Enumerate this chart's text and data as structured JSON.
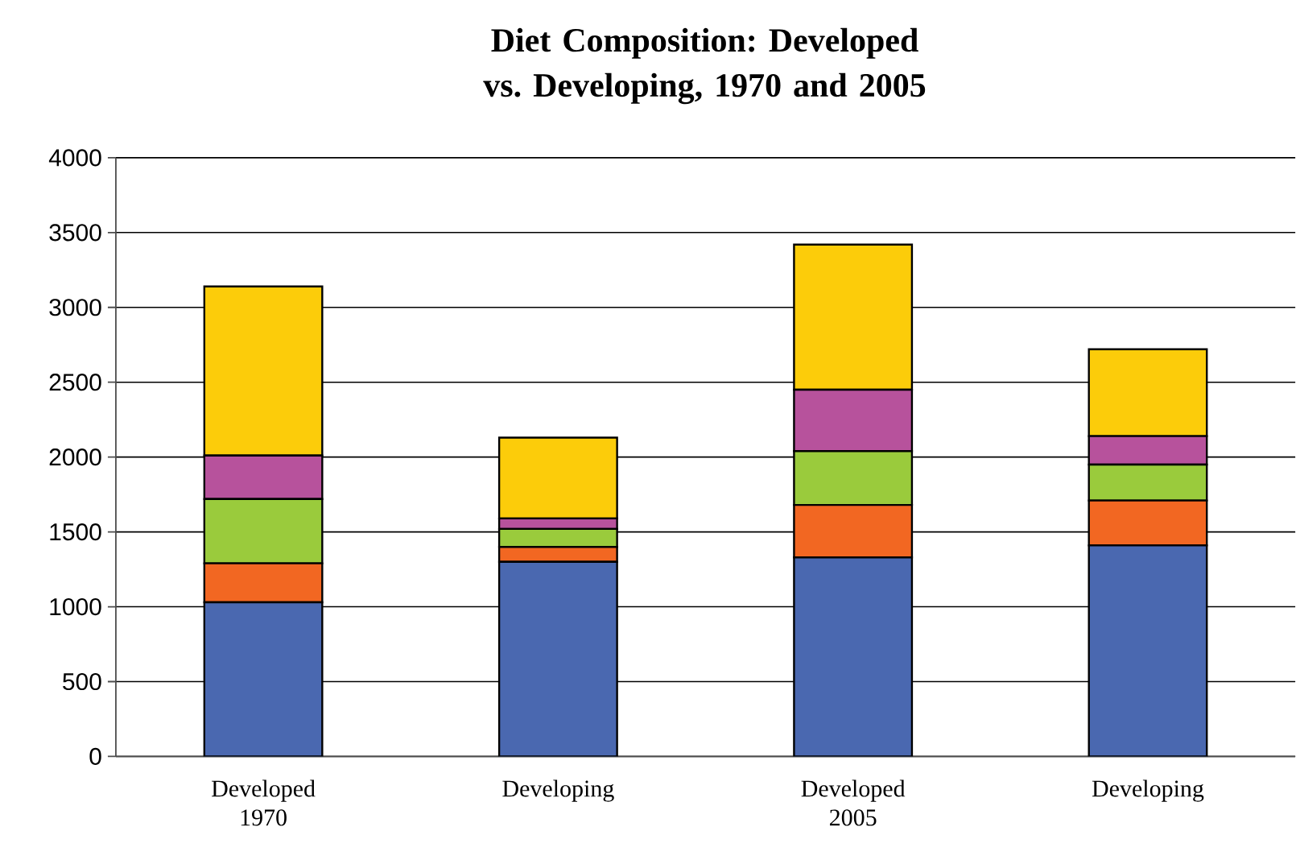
{
  "chart_data": {
    "type": "bar",
    "title": "Diet Composition: Developed vs. Developing, 1970 and 2005",
    "categories": [
      "Developed 1970",
      "Developing",
      "Developed 2005",
      "Developing"
    ],
    "stacked": true,
    "series": [
      {
        "color": "#4a68b0",
        "values": [
          1030,
          1300,
          1330,
          1410
        ]
      },
      {
        "color": "#f26722",
        "values": [
          260,
          100,
          350,
          300
        ]
      },
      {
        "color": "#9acb3c",
        "values": [
          430,
          120,
          360,
          240
        ]
      },
      {
        "color": "#b7529c",
        "values": [
          290,
          70,
          410,
          190
        ]
      },
      {
        "color": "#fccc0a",
        "values": [
          1130,
          540,
          970,
          580
        ]
      }
    ],
    "ylim": [
      0,
      4000
    ],
    "yticks": [
      0,
      500,
      1000,
      1500,
      2000,
      2500,
      3000,
      3500,
      4000
    ],
    "grid": "y"
  }
}
